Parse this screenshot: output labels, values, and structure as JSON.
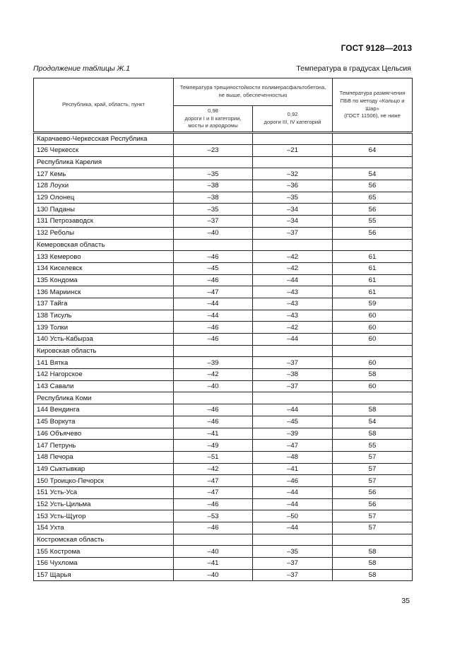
{
  "header": {
    "doc_code": "ГОСТ 9128—2013"
  },
  "caption": {
    "left": "Продолжение таблицы Ж.1",
    "right": "Температура в градусах Цельсия"
  },
  "table": {
    "col_region": "Республика, край, область, пункт",
    "col_group": "Температура трещиностойкости полимерасфальтобетона, не выше, обеспеченностью",
    "col_a": "0,98\nдороги I и II категории, мосты и аэродромы",
    "col_b": "0,92\nдороги III, IV категорий",
    "col_c": "Температура размягчения ПБВ по методу «Кольцо и Шар»\n(ГОСТ 11506), не ниже",
    "rows": [
      {
        "group": "Карачаево-Черкесская Республика"
      },
      {
        "name": "126 Черкесск",
        "a": "–23",
        "b": "–21",
        "c": "64"
      },
      {
        "group": "Республика Карелия"
      },
      {
        "name": "127 Кемь",
        "a": "–35",
        "b": "–32",
        "c": "54"
      },
      {
        "name": "128 Лоухи",
        "a": "–38",
        "b": "–36",
        "c": "56"
      },
      {
        "name": "129 Олонец",
        "a": "–38",
        "b": "–35",
        "c": "65"
      },
      {
        "name": "130 Паданы",
        "a": "–35",
        "b": "–34",
        "c": "56"
      },
      {
        "name": "131 Петрозаводск",
        "a": "–37",
        "b": "–34",
        "c": "55"
      },
      {
        "name": "132 Реболы",
        "a": "–40",
        "b": "–37",
        "c": "56"
      },
      {
        "group": "Кемеровская область"
      },
      {
        "name": "133 Кемерово",
        "a": "–46",
        "b": "–42",
        "c": "61"
      },
      {
        "name": "134 Киселевск",
        "a": "–45",
        "b": "–42",
        "c": "61"
      },
      {
        "name": "135 Кондома",
        "a": "–46",
        "b": "–44",
        "c": "61"
      },
      {
        "name": "136 Мариинск",
        "a": "–47",
        "b": "–43",
        "c": "61"
      },
      {
        "name": "137 Тайга",
        "a": "–44",
        "b": "–43",
        "c": "59"
      },
      {
        "name": "138 Тисуль",
        "a": "–44",
        "b": "–43",
        "c": "60"
      },
      {
        "name": "139 Толки",
        "a": "–46",
        "b": "–42",
        "c": "60"
      },
      {
        "name": "140 Усть-Кабырза",
        "a": "–46",
        "b": "–44",
        "c": "60"
      },
      {
        "group": "Кировская область"
      },
      {
        "name": "141 Вятка",
        "a": "–39",
        "b": "–37",
        "c": "60"
      },
      {
        "name": "142 Нагорское",
        "a": "–42",
        "b": "–38",
        "c": "58"
      },
      {
        "name": "143 Савали",
        "a": "–40",
        "b": "–37",
        "c": "60"
      },
      {
        "group": "Республика Коми"
      },
      {
        "name": "144 Вендинга",
        "a": "–46",
        "b": "–44",
        "c": "58"
      },
      {
        "name": "145 Воркута",
        "a": "–46",
        "b": "–45",
        "c": "54"
      },
      {
        "name": "146 Объячево",
        "a": "–41",
        "b": "–39",
        "c": "58"
      },
      {
        "name": "147 Петрунь",
        "a": "–49",
        "b": "–47",
        "c": "55"
      },
      {
        "name": "148 Печора",
        "a": "–51",
        "b": "–48",
        "c": "57"
      },
      {
        "name": "149 Сыктывкар",
        "a": "–42",
        "b": "–41",
        "c": "57"
      },
      {
        "name": "150 Троицко-Печорск",
        "a": "–47",
        "b": "–46",
        "c": "57"
      },
      {
        "name": "151 Усть-Уса",
        "a": "–47",
        "b": "–44",
        "c": "56"
      },
      {
        "name": "152 Усть-Цильма",
        "a": "–46",
        "b": "–44",
        "c": "56"
      },
      {
        "name": "153 Усть-Щугор",
        "a": "–53",
        "b": "–50",
        "c": "57"
      },
      {
        "name": "154 Ухта",
        "a": "–46",
        "b": "–44",
        "c": "57"
      },
      {
        "group": "Костромская область"
      },
      {
        "name": "155 Кострома",
        "a": "–40",
        "b": "–35",
        "c": "58"
      },
      {
        "name": "156 Чухлома",
        "a": "–41",
        "b": "–37",
        "c": "58"
      },
      {
        "name": "157 Щарья",
        "a": "–40",
        "b": "–37",
        "c": "58"
      }
    ]
  },
  "footer": {
    "page_number": "35"
  }
}
